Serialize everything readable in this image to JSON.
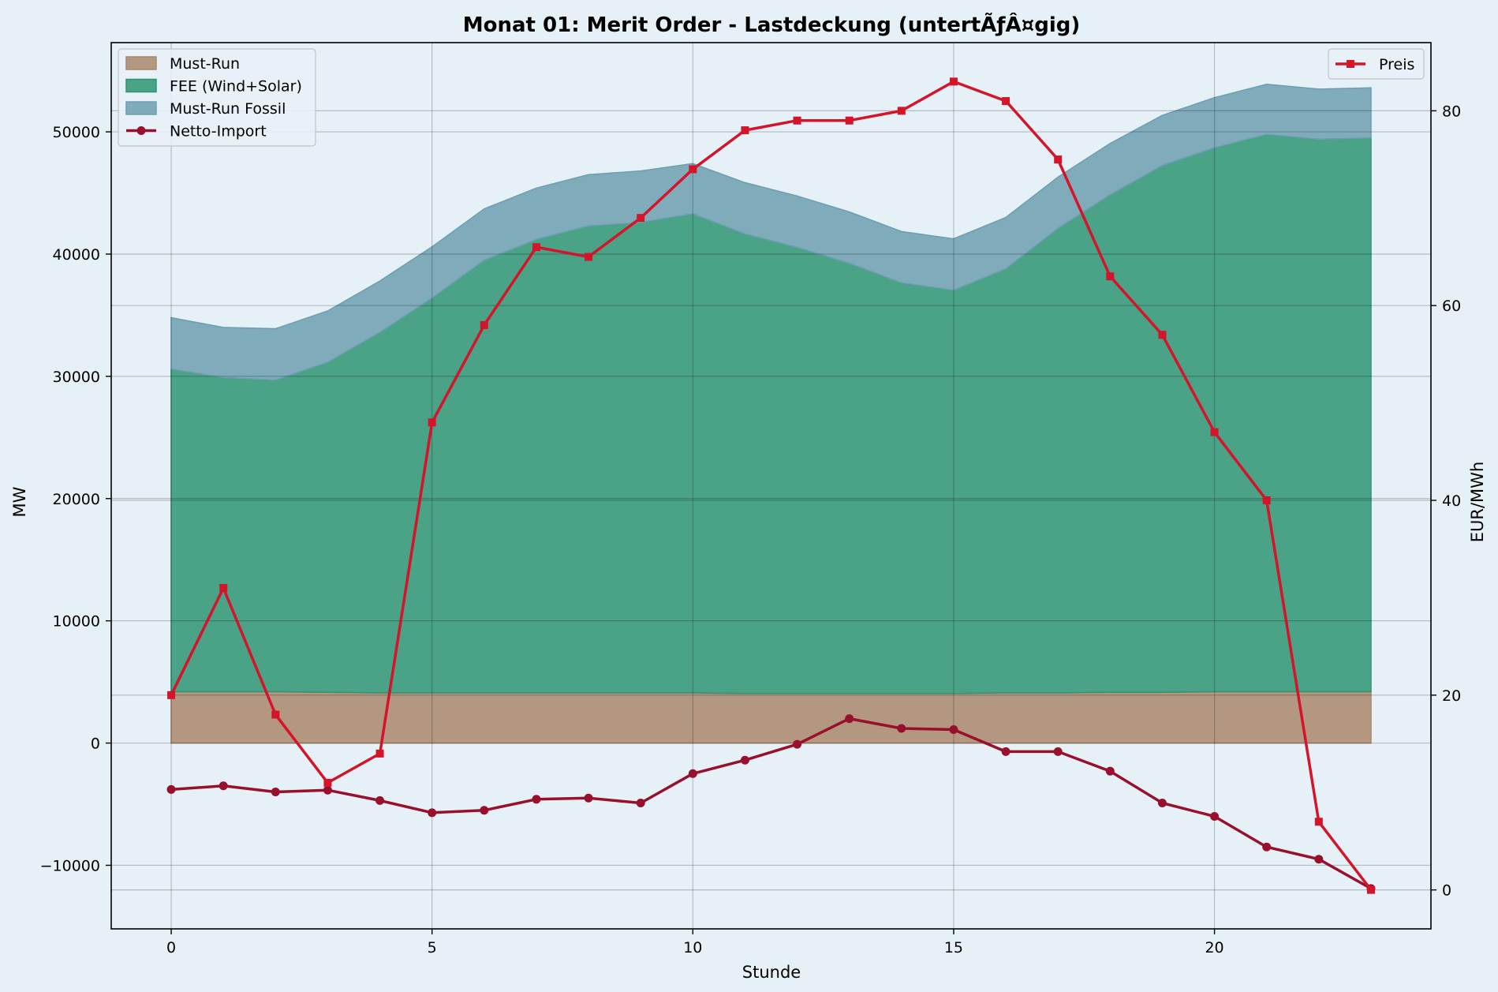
{
  "chart_data": {
    "type": "area",
    "title": "Monat 01: Merit Order - Lastdeckung (untertÃƒÂ¤gig)",
    "xlabel": "Stunde",
    "ylabel": "MW",
    "y2label": "EUR/MWh",
    "xlim": [
      -1.15,
      24.15
    ],
    "ylim": [
      -15200,
      57300
    ],
    "y2lim": [
      -4,
      87
    ],
    "xticks": [
      "0",
      "5",
      "10",
      "15",
      "20"
    ],
    "yticks": [
      "−10000",
      "0",
      "10000",
      "20000",
      "30000",
      "40000",
      "50000"
    ],
    "y2ticks": [
      "0",
      "20",
      "40",
      "60",
      "80"
    ],
    "grid": true,
    "x": [
      0,
      1,
      2,
      3,
      4,
      5,
      6,
      7,
      8,
      9,
      10,
      11,
      12,
      13,
      14,
      15,
      16,
      17,
      18,
      19,
      20,
      21,
      22,
      23
    ],
    "stacked_series": [
      {
        "name": "Must-Run",
        "color": "#a9876b",
        "values": [
          4200,
          4200,
          4200,
          4150,
          4100,
          4100,
          4100,
          4100,
          4100,
          4100,
          4100,
          4050,
          4050,
          4050,
          4050,
          4050,
          4100,
          4100,
          4150,
          4150,
          4200,
          4200,
          4200,
          4200
        ]
      },
      {
        "name": "FEE (Wind+Solar)",
        "color": "#2e9473",
        "values": [
          26400,
          25700,
          25500,
          27000,
          29500,
          32300,
          35400,
          37100,
          38200,
          38500,
          39200,
          37600,
          36500,
          35200,
          33600,
          33000,
          34700,
          38000,
          40700,
          43100,
          44500,
          45600,
          45200,
          45300
        ]
      },
      {
        "name": "Must-Run Fossil",
        "color": "#6c9fb0",
        "values": [
          4200,
          4100,
          4200,
          4200,
          4200,
          4200,
          4200,
          4200,
          4200,
          4200,
          4100,
          4200,
          4200,
          4200,
          4200,
          4200,
          4200,
          4200,
          4200,
          4100,
          4100,
          4100,
          4100,
          4100
        ]
      }
    ],
    "lines": [
      {
        "name": "Netto-Import",
        "axis": "left",
        "color": "#99102c",
        "marker": "circle",
        "values": [
          -3800,
          -3500,
          -4000,
          -3850,
          -4700,
          -5700,
          -5500,
          -4600,
          -4500,
          -4900,
          -2500,
          -1400,
          -100,
          2000,
          1200,
          1100,
          -700,
          -700,
          -2300,
          -4900,
          -6000,
          -8500,
          -9500,
          -11900
        ]
      },
      {
        "name": "Preis",
        "axis": "right",
        "color": "#d5142a",
        "marker": "square",
        "values": [
          20,
          31,
          18,
          11,
          14,
          48,
          58,
          66,
          65,
          69,
          74,
          78,
          79,
          79,
          80,
          83,
          81,
          75,
          63,
          57,
          47,
          40,
          7,
          0
        ]
      }
    ],
    "legend_left": [
      "Must-Run",
      "FEE (Wind+Solar)",
      "Must-Run Fossil",
      "Netto-Import"
    ],
    "legend_left_position": "upper left",
    "legend_right": [
      "Preis"
    ],
    "legend_right_position": "upper right"
  }
}
